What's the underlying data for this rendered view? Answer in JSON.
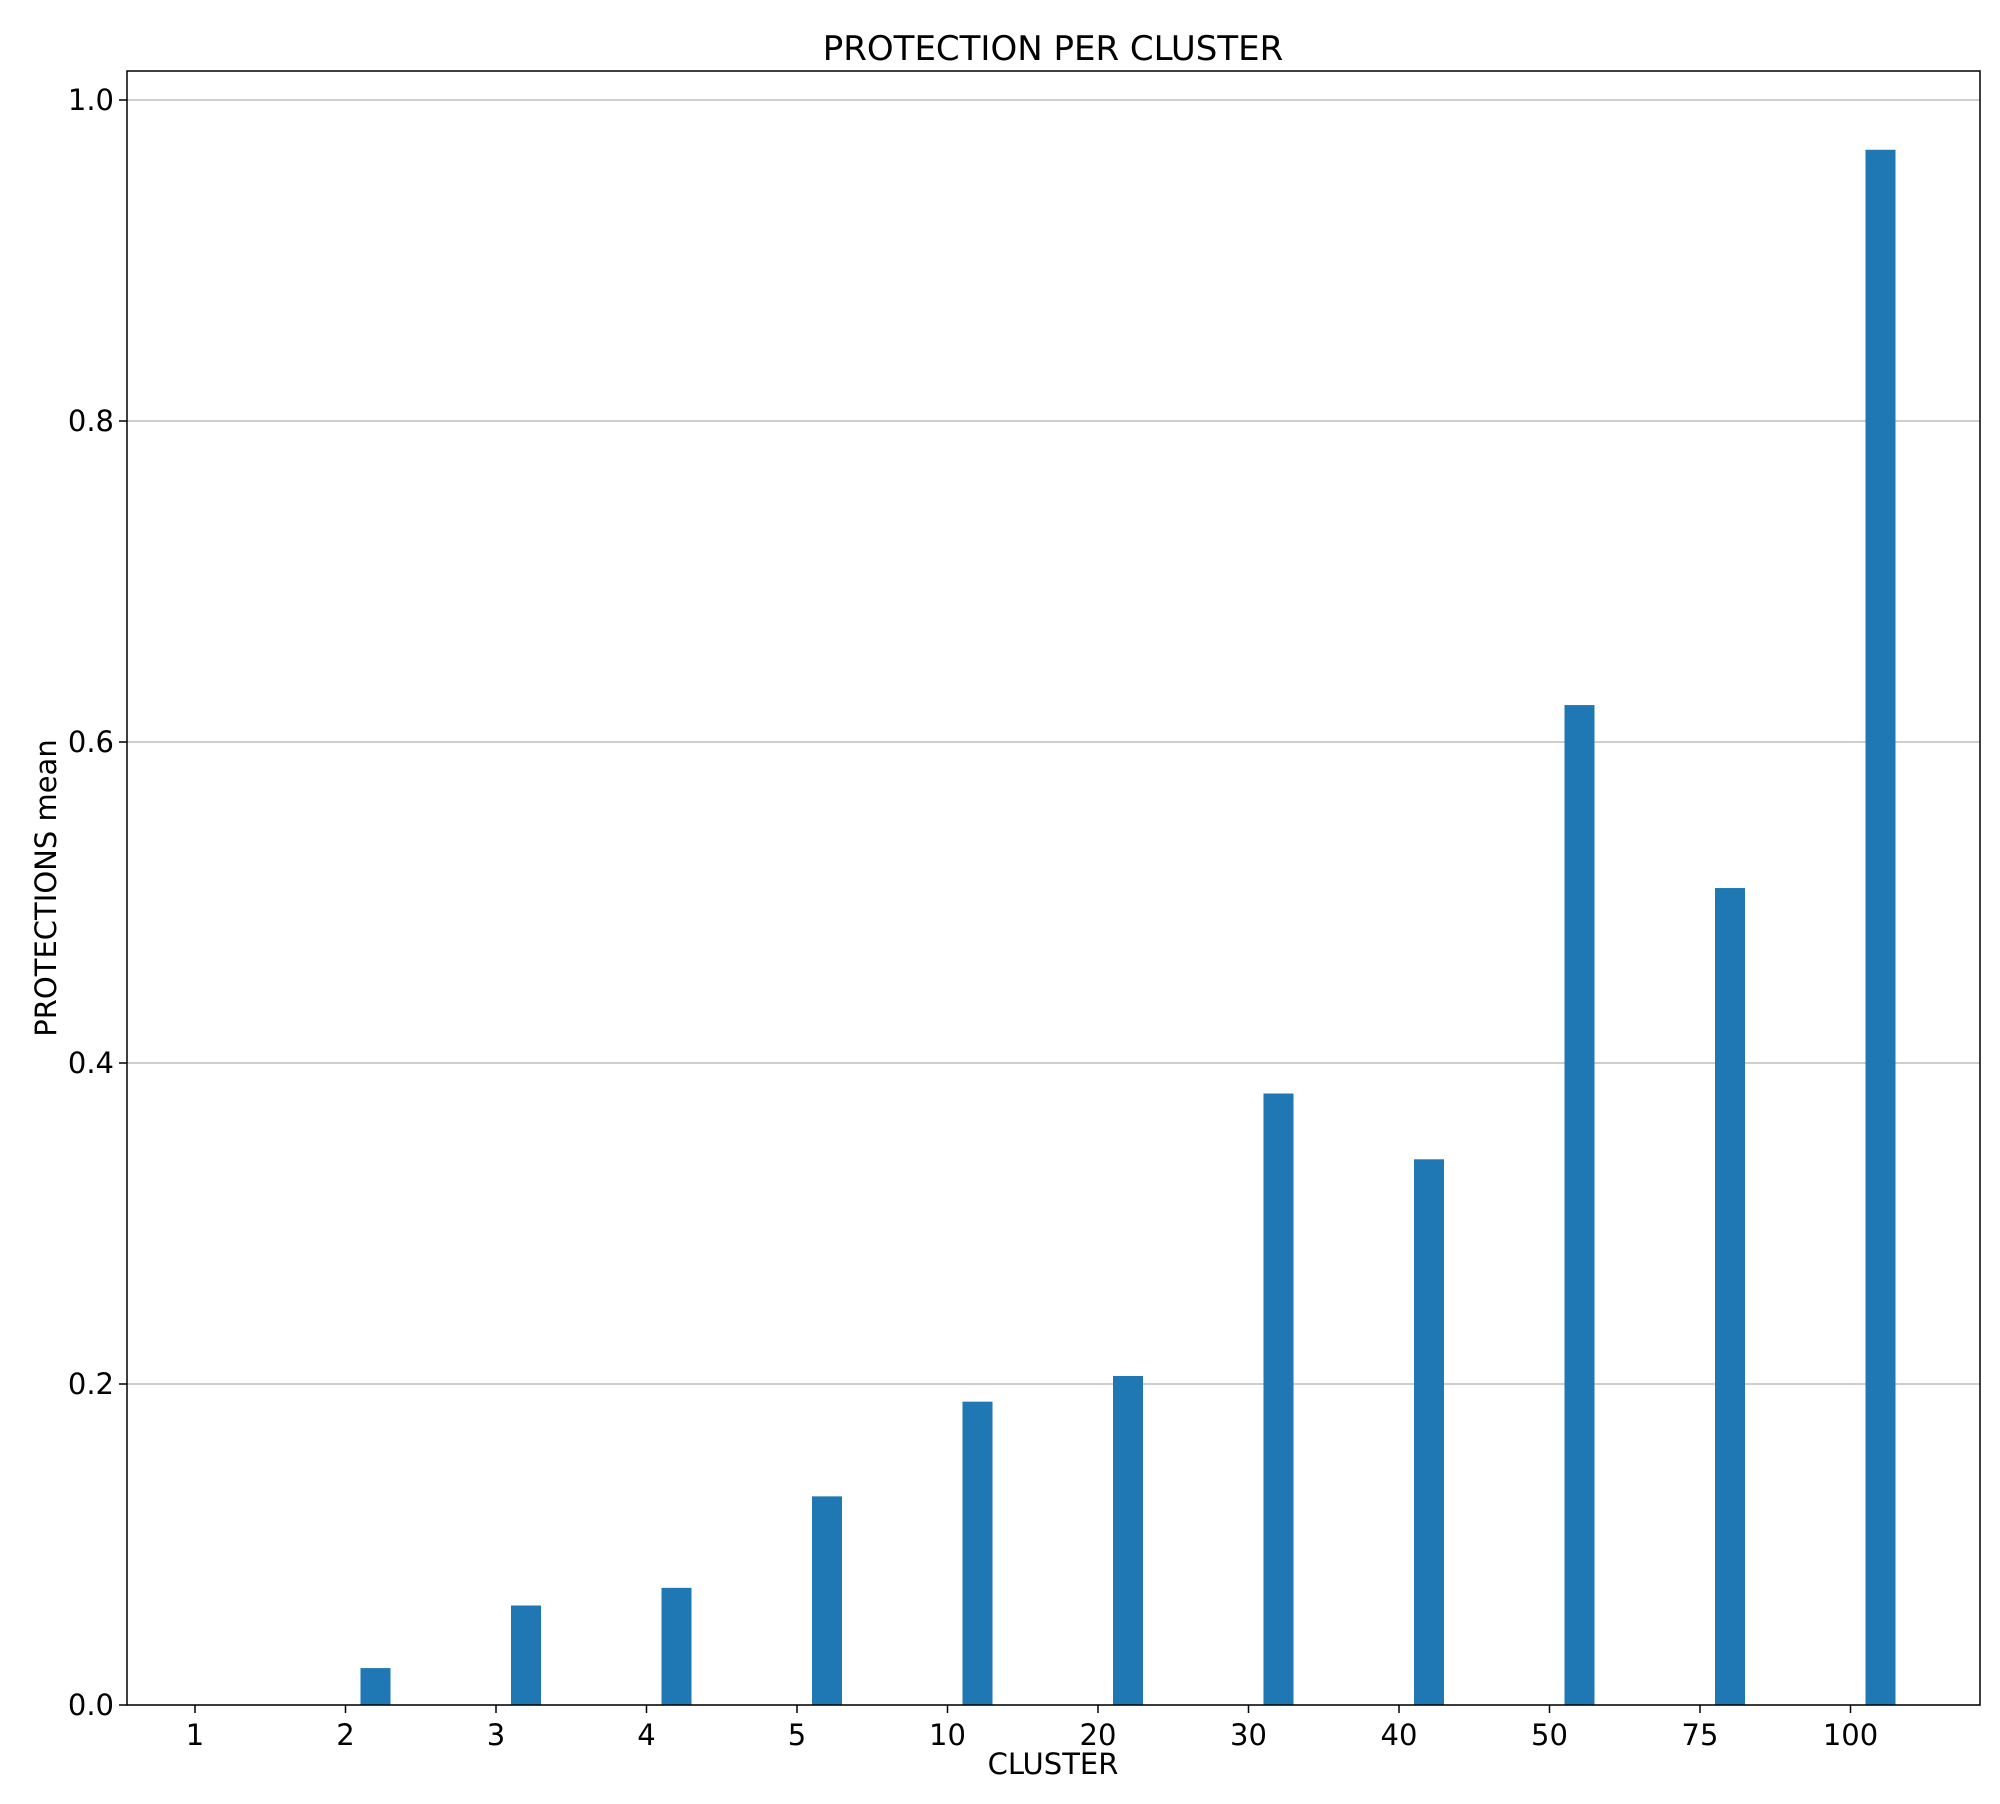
{
  "chart_data": {
    "type": "bar",
    "title": "PROTECTION PER CLUSTER",
    "xlabel": "CLUSTER",
    "ylabel": "PROTECTIONS mean",
    "categories": [
      "1",
      "2",
      "3",
      "4",
      "5",
      "10",
      "20",
      "30",
      "40",
      "50",
      "75",
      "100"
    ],
    "values": [
      0.0,
      0.023,
      0.062,
      0.073,
      0.13,
      0.189,
      0.205,
      0.381,
      0.34,
      0.623,
      0.509,
      0.969
    ],
    "ylim": [
      0,
      1.0
    ],
    "yticks": [
      "0.0",
      "0.2",
      "0.4",
      "0.6",
      "0.8",
      "1.0"
    ],
    "grid": "horizontal",
    "bar_color": "#1f77b4",
    "grid_color": "#b0b0b0"
  }
}
